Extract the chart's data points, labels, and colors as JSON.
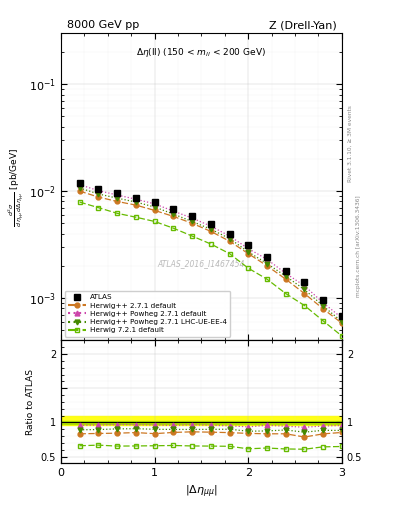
{
  "title_left": "8000 GeV pp",
  "title_right": "Z (Drell-Yan)",
  "annotation": "Δη(ll) (150 < m_{ll} < 200 GeV)",
  "watermark": "ATLAS_2016_I1467454",
  "rivet_label": "Rivet 3.1.10, ≥ 3M events",
  "mcplots_label": "mcplots.cern.ch [arXiv:1306.3436]",
  "ylabel_ratio": "Ratio to ATLAS",
  "xlim": [
    0,
    3.0
  ],
  "ylim_main": [
    0.0004,
    0.3
  ],
  "ylim_ratio": [
    0.4,
    2.2
  ],
  "x_atlas": [
    0.2,
    0.4,
    0.6,
    0.8,
    1.0,
    1.2,
    1.4,
    1.6,
    1.8,
    2.0,
    2.2,
    2.4,
    2.6,
    2.8,
    3.0
  ],
  "y_atlas": [
    0.012,
    0.0105,
    0.0095,
    0.0087,
    0.0079,
    0.0068,
    0.0058,
    0.0049,
    0.004,
    0.0031,
    0.0024,
    0.0018,
    0.0014,
    0.00095,
    0.00068
  ],
  "y_atlas_err": [
    0.0006,
    0.0005,
    0.0005,
    0.0004,
    0.0004,
    0.0003,
    0.0003,
    0.0002,
    0.0002,
    0.00015,
    0.00012,
    0.0001,
    8e-05,
    6e-05,
    5e-05
  ],
  "x_mc": [
    0.2,
    0.4,
    0.6,
    0.8,
    1.0,
    1.2,
    1.4,
    1.6,
    1.8,
    2.0,
    2.2,
    2.4,
    2.6,
    2.8,
    3.0
  ],
  "y_hw_default": [
    0.01,
    0.0088,
    0.008,
    0.0074,
    0.0066,
    0.0058,
    0.005,
    0.0042,
    0.0034,
    0.0026,
    0.002,
    0.0015,
    0.0011,
    0.00079,
    0.00058
  ],
  "y_hw_powheg": [
    0.0115,
    0.0101,
    0.0092,
    0.0084,
    0.0076,
    0.0065,
    0.0056,
    0.0047,
    0.0038,
    0.0029,
    0.0023,
    0.0017,
    0.0013,
    0.0009,
    0.00065
  ],
  "y_hw_powheg_lhc": [
    0.0107,
    0.0094,
    0.0086,
    0.0079,
    0.0071,
    0.0061,
    0.0052,
    0.0044,
    0.0036,
    0.0027,
    0.0021,
    0.0016,
    0.0012,
    0.00084,
    0.0006
  ],
  "y_hw721": [
    0.0079,
    0.007,
    0.0062,
    0.0057,
    0.0052,
    0.0045,
    0.0038,
    0.0032,
    0.0026,
    0.0019,
    0.0015,
    0.0011,
    0.00085,
    0.00061,
    0.00044
  ],
  "color_atlas": "#000000",
  "color_hw_default": "#cc7722",
  "color_hw_powheg": "#cc44aa",
  "color_hw_powheg_lhc": "#448800",
  "color_hw721": "#66bb00",
  "label_atlas": "ATLAS",
  "label_hw_default": "Herwig++ 2.7.1 default",
  "label_hw_powheg": "Herwig++ Powheg 2.7.1 default",
  "label_hw_powheg_lhc": "Herwig++ Powheg 2.7.1 LHC-UE-EE-4",
  "label_hw721": "Herwig 7.2.1 default",
  "ratio_hw_default": [
    0.833,
    0.838,
    0.842,
    0.851,
    0.835,
    0.853,
    0.862,
    0.857,
    0.85,
    0.839,
    0.833,
    0.833,
    0.786,
    0.832,
    0.853
  ],
  "ratio_hw_powheg": [
    0.958,
    0.962,
    0.968,
    0.966,
    0.962,
    0.956,
    0.966,
    0.959,
    0.95,
    0.935,
    0.958,
    0.944,
    0.929,
    0.947,
    0.956
  ],
  "ratio_hw_powheg_lhc": [
    0.892,
    0.895,
    0.905,
    0.908,
    0.899,
    0.897,
    0.897,
    0.898,
    0.9,
    0.871,
    0.875,
    0.889,
    0.857,
    0.884,
    0.882
  ],
  "ratio_hw721": [
    0.658,
    0.667,
    0.653,
    0.655,
    0.658,
    0.662,
    0.655,
    0.653,
    0.65,
    0.613,
    0.625,
    0.611,
    0.607,
    0.642,
    0.647
  ],
  "band_yellow_low": 0.955,
  "band_yellow_high": 1.1,
  "band_green_low": 0.98,
  "band_green_high": 1.025
}
